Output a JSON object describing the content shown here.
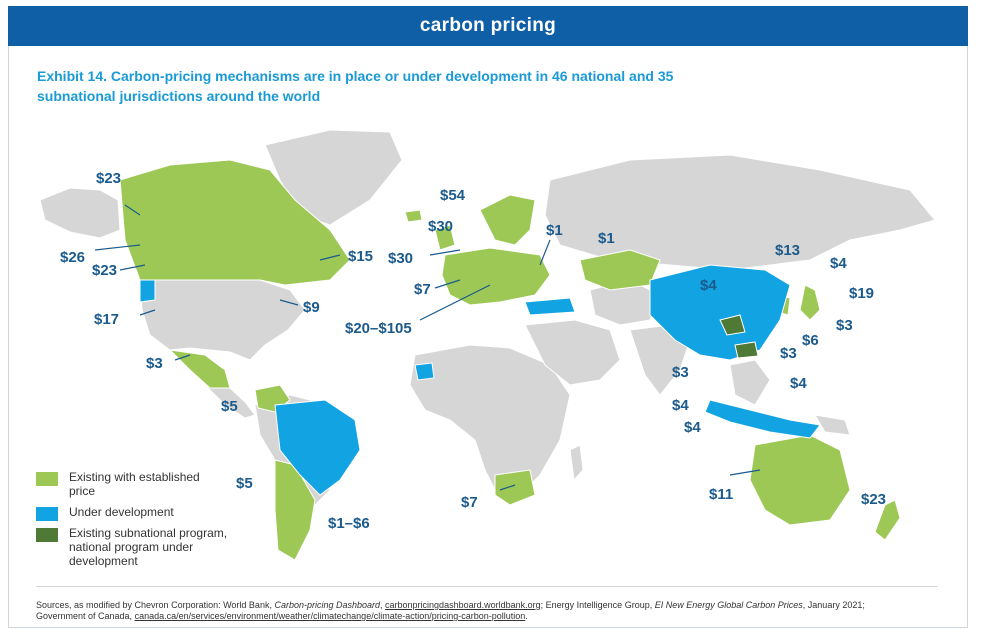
{
  "banner": {
    "title": "carbon pricing"
  },
  "exhibit": {
    "title": "Exhibit 14. Carbon-pricing mechanisms are in place or under development in 46 national and 35 subnational jurisdictions around the world"
  },
  "colors": {
    "existing": "#9dc855",
    "under_development": "#12a3e2",
    "subnational": "#4f7a35",
    "no_program": "#d6d6d6",
    "label": "#1b5a8c",
    "banner": "#0f5fa6"
  },
  "legend": [
    {
      "label": "Existing with established price",
      "color": "#9dc855"
    },
    {
      "label": "Under development",
      "color": "#12a3e2"
    },
    {
      "label": "Existing subnational program, national program under development",
      "color": "#4f7a35"
    }
  ],
  "price_labels": [
    "$23",
    "$26",
    "$23",
    "$17",
    "$3",
    "$15",
    "$9",
    "$5",
    "$5",
    "$1–$6",
    "$54",
    "$30",
    "$30",
    "$7",
    "$20–$105",
    "$1",
    "$1",
    "$7",
    "$4",
    "$13",
    "$4",
    "$19",
    "$3",
    "$6",
    "$3",
    "$4",
    "$3",
    "$4",
    "$4",
    "$11",
    "$23"
  ],
  "sources": {
    "lead": "Sources, as modified by Chevron Corporation: World Bank, ",
    "wb_title": "Carbon-pricing Dashboard",
    "sep1": ", ",
    "wb_link": "carbonpricingdashboard.worldbank.org",
    "mid": "; Energy Intelligence Group, ",
    "ei_title": "EI New Energy Global Carbon Prices",
    "mid2": ", January 2021;",
    "line2": "Government of Canada, ",
    "gc_link": "canada.ca/en/services/environment/weather/climatechange/climate-action/pricing-carbon-pollution",
    "end": "."
  }
}
